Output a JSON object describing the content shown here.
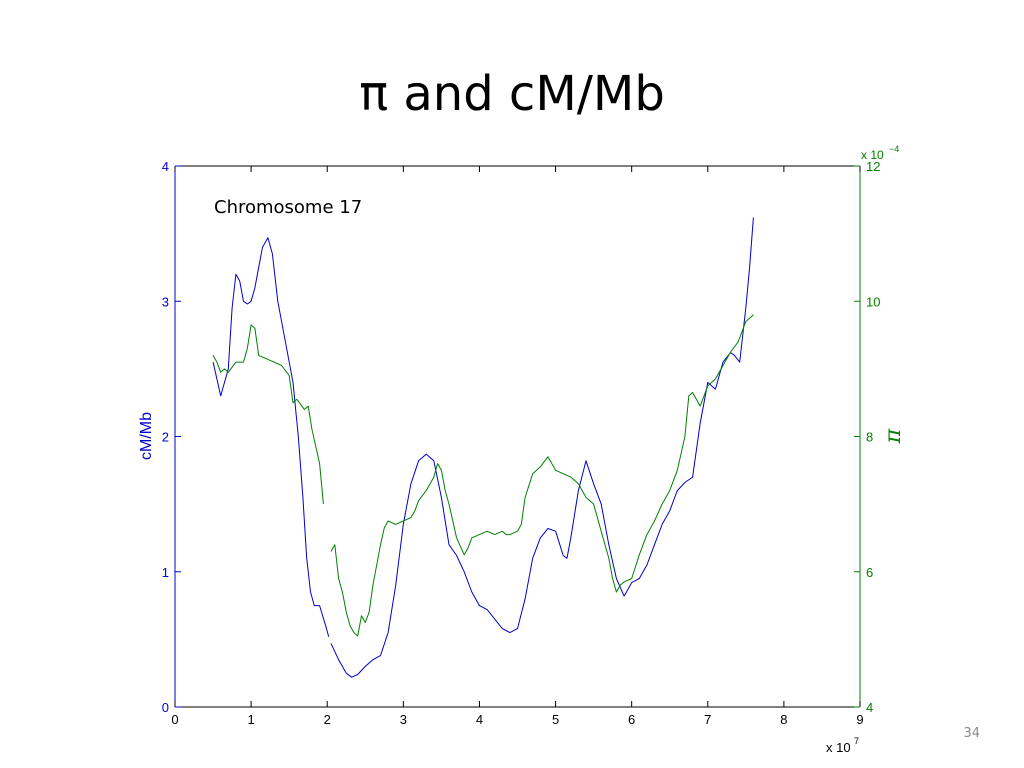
{
  "slide": {
    "title": "π and cM/Mb",
    "page_number": "34"
  },
  "colors": {
    "recombination": "#0000cc",
    "pi": "#008000",
    "axis": "#000000"
  },
  "chart_data": {
    "type": "line",
    "title": "",
    "annotation": "Chromosome 17",
    "grid": false,
    "x_axis": {
      "label": "",
      "range": [
        0,
        9
      ],
      "ticks": [
        "0",
        "1",
        "2",
        "3",
        "4",
        "5",
        "6",
        "7",
        "8",
        "9"
      ],
      "multiplier_base": "x 10",
      "multiplier_exponent": "7"
    },
    "y_left": {
      "label": "cM/Mb",
      "range": [
        0,
        4
      ],
      "ticks": [
        "0",
        "1",
        "2",
        "3",
        "4"
      ],
      "color": "#0000cc"
    },
    "y_right": {
      "label": "π",
      "range": [
        4,
        12
      ],
      "ticks": [
        "4",
        "6",
        "8",
        "10",
        "12"
      ],
      "multiplier_base": "x 10",
      "multiplier_exponent": "−4",
      "color": "#008000"
    },
    "series": [
      {
        "name": "cM/Mb",
        "axis": "left",
        "color": "#0000cc",
        "segments": [
          [
            [
              0.5,
              2.55
            ],
            [
              0.6,
              2.3
            ],
            [
              0.7,
              2.5
            ],
            [
              0.75,
              2.95
            ],
            [
              0.8,
              3.2
            ],
            [
              0.85,
              3.15
            ],
            [
              0.9,
              3.0
            ],
            [
              0.95,
              2.98
            ],
            [
              1.0,
              3.0
            ],
            [
              1.05,
              3.1
            ],
            [
              1.1,
              3.25
            ],
            [
              1.15,
              3.4
            ],
            [
              1.22,
              3.47
            ],
            [
              1.28,
              3.35
            ],
            [
              1.35,
              3.0
            ],
            [
              1.45,
              2.7
            ],
            [
              1.55,
              2.4
            ],
            [
              1.62,
              2.0
            ],
            [
              1.68,
              1.55
            ],
            [
              1.73,
              1.1
            ],
            [
              1.78,
              0.85
            ],
            [
              1.83,
              0.75
            ],
            [
              1.9,
              0.75
            ],
            [
              1.98,
              0.6
            ],
            [
              2.02,
              0.52
            ]
          ],
          [
            [
              2.05,
              0.47
            ],
            [
              2.15,
              0.35
            ],
            [
              2.25,
              0.25
            ],
            [
              2.32,
              0.22
            ],
            [
              2.4,
              0.24
            ],
            [
              2.5,
              0.3
            ],
            [
              2.6,
              0.35
            ],
            [
              2.7,
              0.38
            ],
            [
              2.8,
              0.55
            ],
            [
              2.9,
              0.9
            ],
            [
              3.0,
              1.35
            ],
            [
              3.1,
              1.65
            ],
            [
              3.2,
              1.82
            ],
            [
              3.3,
              1.87
            ],
            [
              3.4,
              1.82
            ],
            [
              3.5,
              1.55
            ],
            [
              3.6,
              1.2
            ],
            [
              3.7,
              1.12
            ],
            [
              3.8,
              1.0
            ],
            [
              3.9,
              0.85
            ],
            [
              4.0,
              0.75
            ],
            [
              4.1,
              0.72
            ],
            [
              4.2,
              0.65
            ],
            [
              4.3,
              0.58
            ],
            [
              4.4,
              0.55
            ],
            [
              4.5,
              0.58
            ],
            [
              4.6,
              0.8
            ],
            [
              4.7,
              1.1
            ],
            [
              4.8,
              1.25
            ],
            [
              4.9,
              1.32
            ],
            [
              5.0,
              1.3
            ],
            [
              5.1,
              1.12
            ],
            [
              5.15,
              1.1
            ],
            [
              5.2,
              1.25
            ],
            [
              5.3,
              1.6
            ],
            [
              5.4,
              1.82
            ],
            [
              5.5,
              1.65
            ],
            [
              5.6,
              1.5
            ],
            [
              5.7,
              1.2
            ],
            [
              5.8,
              0.95
            ],
            [
              5.9,
              0.82
            ],
            [
              6.0,
              0.92
            ],
            [
              6.1,
              0.95
            ],
            [
              6.2,
              1.05
            ],
            [
              6.3,
              1.2
            ],
            [
              6.4,
              1.35
            ],
            [
              6.5,
              1.45
            ],
            [
              6.6,
              1.6
            ],
            [
              6.7,
              1.66
            ],
            [
              6.8,
              1.7
            ],
            [
              6.9,
              2.1
            ],
            [
              7.0,
              2.4
            ],
            [
              7.1,
              2.35
            ],
            [
              7.2,
              2.55
            ],
            [
              7.3,
              2.62
            ],
            [
              7.35,
              2.6
            ],
            [
              7.42,
              2.55
            ],
            [
              7.5,
              2.95
            ],
            [
              7.55,
              3.25
            ],
            [
              7.6,
              3.62
            ]
          ]
        ]
      },
      {
        "name": "π",
        "axis": "right",
        "color": "#008000",
        "segments": [
          [
            [
              0.5,
              9.2
            ],
            [
              0.55,
              9.1
            ],
            [
              0.6,
              8.95
            ],
            [
              0.65,
              9.0
            ],
            [
              0.7,
              8.95
            ],
            [
              0.8,
              9.1
            ],
            [
              0.9,
              9.1
            ],
            [
              0.95,
              9.3
            ],
            [
              1.0,
              9.65
            ],
            [
              1.05,
              9.6
            ],
            [
              1.1,
              9.2
            ],
            [
              1.2,
              9.15
            ],
            [
              1.3,
              9.1
            ],
            [
              1.4,
              9.05
            ],
            [
              1.5,
              8.9
            ],
            [
              1.55,
              8.5
            ],
            [
              1.6,
              8.55
            ],
            [
              1.7,
              8.4
            ],
            [
              1.75,
              8.45
            ],
            [
              1.8,
              8.1
            ],
            [
              1.9,
              7.6
            ],
            [
              1.95,
              7.0
            ]
          ],
          [
            [
              2.05,
              6.3
            ],
            [
              2.1,
              6.4
            ],
            [
              2.15,
              5.9
            ],
            [
              2.2,
              5.7
            ],
            [
              2.25,
              5.4
            ],
            [
              2.3,
              5.2
            ],
            [
              2.35,
              5.1
            ],
            [
              2.4,
              5.05
            ],
            [
              2.45,
              5.35
            ],
            [
              2.5,
              5.25
            ],
            [
              2.55,
              5.4
            ],
            [
              2.6,
              5.8
            ],
            [
              2.7,
              6.4
            ],
            [
              2.75,
              6.65
            ],
            [
              2.8,
              6.75
            ],
            [
              2.9,
              6.7
            ],
            [
              3.0,
              6.75
            ],
            [
              3.1,
              6.8
            ],
            [
              3.15,
              6.9
            ],
            [
              3.2,
              7.05
            ],
            [
              3.3,
              7.2
            ],
            [
              3.4,
              7.4
            ],
            [
              3.45,
              7.6
            ],
            [
              3.5,
              7.5
            ],
            [
              3.55,
              7.2
            ],
            [
              3.6,
              7.0
            ],
            [
              3.7,
              6.5
            ],
            [
              3.8,
              6.25
            ],
            [
              3.85,
              6.35
            ],
            [
              3.9,
              6.5
            ],
            [
              4.0,
              6.55
            ],
            [
              4.1,
              6.6
            ],
            [
              4.2,
              6.55
            ],
            [
              4.3,
              6.6
            ],
            [
              4.35,
              6.55
            ],
            [
              4.4,
              6.55
            ],
            [
              4.5,
              6.6
            ],
            [
              4.55,
              6.7
            ],
            [
              4.6,
              7.1
            ],
            [
              4.7,
              7.45
            ],
            [
              4.8,
              7.55
            ],
            [
              4.9,
              7.7
            ],
            [
              5.0,
              7.5
            ],
            [
              5.1,
              7.45
            ],
            [
              5.2,
              7.4
            ],
            [
              5.3,
              7.3
            ],
            [
              5.4,
              7.1
            ],
            [
              5.5,
              7.0
            ],
            [
              5.6,
              6.6
            ],
            [
              5.7,
              6.2
            ],
            [
              5.75,
              5.9
            ],
            [
              5.8,
              5.7
            ],
            [
              5.85,
              5.8
            ],
            [
              5.9,
              5.85
            ],
            [
              6.0,
              5.9
            ],
            [
              6.1,
              6.25
            ],
            [
              6.2,
              6.55
            ],
            [
              6.3,
              6.75
            ],
            [
              6.4,
              7.0
            ],
            [
              6.5,
              7.2
            ],
            [
              6.6,
              7.5
            ],
            [
              6.7,
              8.0
            ],
            [
              6.75,
              8.6
            ],
            [
              6.8,
              8.65
            ],
            [
              6.9,
              8.45
            ],
            [
              7.0,
              8.75
            ],
            [
              7.1,
              8.85
            ],
            [
              7.2,
              9.05
            ],
            [
              7.3,
              9.25
            ],
            [
              7.4,
              9.4
            ],
            [
              7.5,
              9.7
            ],
            [
              7.55,
              9.75
            ],
            [
              7.6,
              9.8
            ]
          ]
        ]
      }
    ]
  }
}
